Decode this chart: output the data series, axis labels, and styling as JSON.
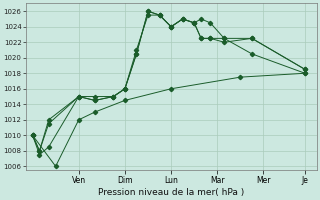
{
  "xlabel": "Pression niveau de la mer( hPa )",
  "bg_color": "#cce8e0",
  "grid_color": "#aaccbb",
  "line_color": "#1a5c2a",
  "ylim": [
    1005.5,
    1027.0
  ],
  "yticks": [
    1006,
    1008,
    1010,
    1012,
    1014,
    1016,
    1018,
    1020,
    1022,
    1024,
    1026
  ],
  "xtick_positions": [
    2,
    4,
    6,
    8,
    10,
    11.8
  ],
  "xtick_labels": [
    "Ven",
    "Dim",
    "Lun",
    "Mar",
    "Mer",
    "Je"
  ],
  "xlim": [
    -0.3,
    12.3
  ],
  "series": [
    {
      "x": [
        0,
        0.3,
        0.7,
        2.0,
        2.7,
        3.5,
        4.0,
        4.5,
        5.0,
        5.5,
        6.0,
        6.5,
        7.0,
        7.3,
        7.7,
        8.3,
        9.5,
        11.8
      ],
      "y": [
        1010,
        1007.5,
        1008.5,
        1015.0,
        1015.0,
        1015.0,
        1016.0,
        1020.5,
        1026.0,
        1025.5,
        1024.0,
        1025.0,
        1024.5,
        1025.0,
        1024.5,
        1022.5,
        1020.5,
        1018.0
      ]
    },
    {
      "x": [
        0,
        0.3,
        0.7,
        2.0,
        2.7,
        3.5,
        4.0,
        4.5,
        5.0,
        5.5,
        6.0,
        6.5,
        7.0,
        7.3,
        7.7,
        8.3,
        9.5,
        11.8
      ],
      "y": [
        1010,
        1008.0,
        1011.5,
        1015.0,
        1014.5,
        1015.0,
        1016.0,
        1020.5,
        1026.0,
        1025.5,
        1024.0,
        1025.0,
        1024.5,
        1022.5,
        1022.5,
        1022.5,
        1022.5,
        1018.5
      ]
    },
    {
      "x": [
        0,
        0.3,
        0.7,
        2.0,
        2.7,
        3.5,
        4.0,
        4.5,
        5.0,
        5.5,
        6.0,
        6.5,
        7.0,
        7.3,
        7.7,
        8.3,
        9.5,
        11.8
      ],
      "y": [
        1010,
        1008.0,
        1012.0,
        1015.0,
        1014.5,
        1015.0,
        1016.0,
        1021.0,
        1025.5,
        1025.5,
        1024.0,
        1025.0,
        1024.5,
        1022.5,
        1022.5,
        1022.0,
        1022.5,
        1018.5
      ]
    },
    {
      "x": [
        0,
        1.0,
        2.0,
        2.7,
        4.0,
        6.0,
        9.0,
        11.8
      ],
      "y": [
        1010,
        1006.0,
        1012.0,
        1013.0,
        1014.5,
        1016.0,
        1017.5,
        1018.0
      ]
    }
  ]
}
